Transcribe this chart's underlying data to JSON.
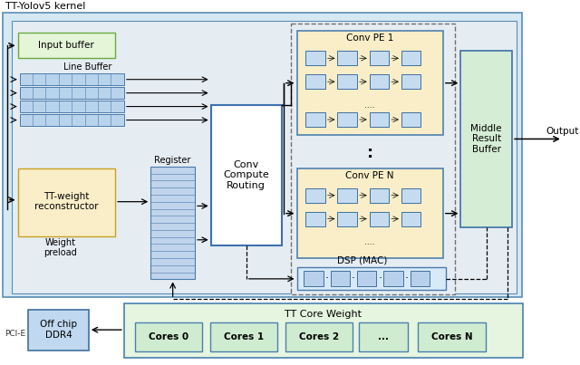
{
  "title": "TT-Yolov5 kernel",
  "pci_label": "PCI-E",
  "off_chip_label": "Off chip\nDDR4",
  "tt_core_weight_label": "TT Core Weight",
  "cores": [
    "Cores 0",
    "Cores 1",
    "Cores 2",
    "...",
    "Cores N"
  ],
  "input_buffer_label": "Input buffer",
  "line_buffer_label": "Line Buffer",
  "tt_weight_label": "TT-weight\nreconstructor",
  "weight_preload_label": "Weight\npreload",
  "register_label": "Register",
  "conv_compute_label": "Conv\nCompute\nRouting",
  "conv_pe1_label": "Conv PE 1",
  "conv_pen_label": "Conv PE N",
  "dsp_label": "DSP (MAC)",
  "middle_result_label": "Middle\nResult\nBuffer",
  "output_label": "Output"
}
